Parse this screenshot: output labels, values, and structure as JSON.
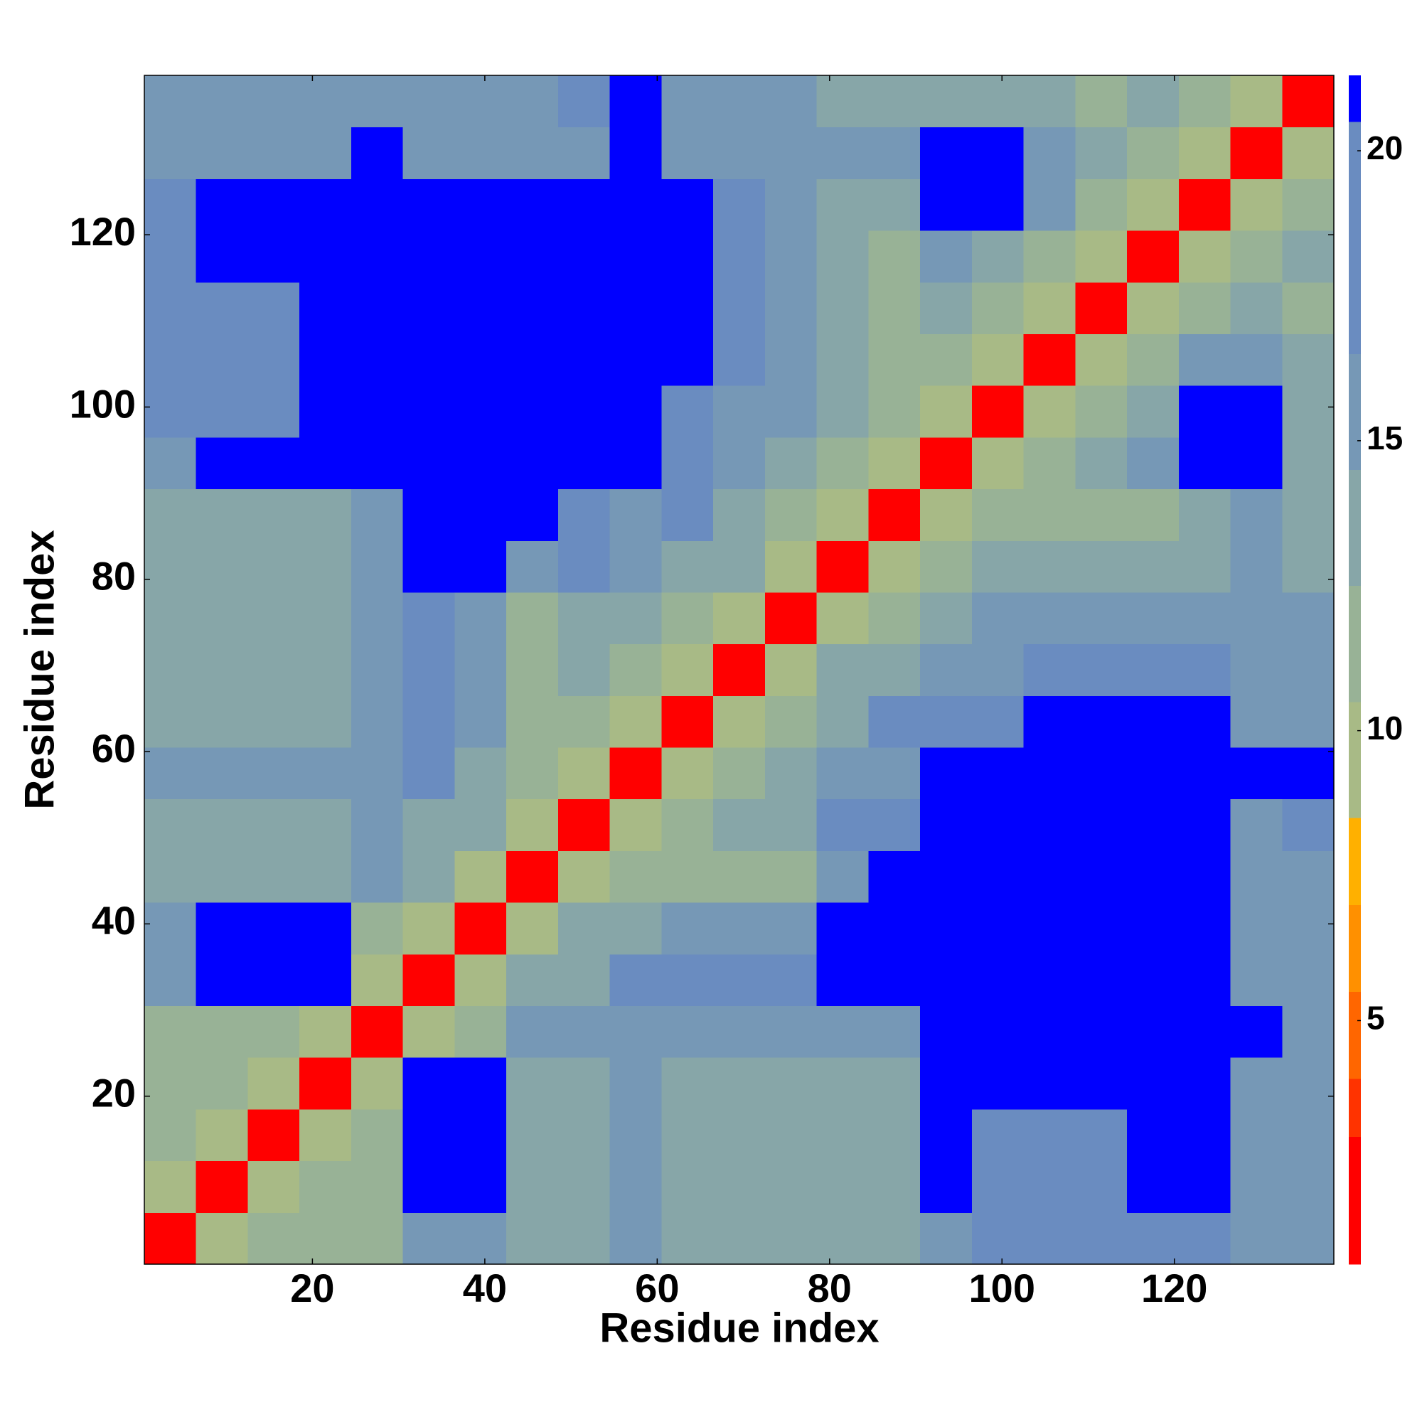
{
  "chart_data": {
    "type": "heatmap",
    "xlabel": "Residue index",
    "ylabel": "Residue index",
    "xlim": [
      0.5,
      138.5
    ],
    "ylim": [
      0.5,
      138.5
    ],
    "xticks": [
      20,
      40,
      60,
      80,
      100,
      120
    ],
    "yticks": [
      20,
      40,
      60,
      80,
      100,
      120
    ],
    "xbins": [
      0.5,
      6.5,
      12.5,
      18.5,
      24.5,
      30.5,
      36.5,
      42.5,
      48.5,
      54.5,
      60.5,
      66.5,
      72.5,
      78.5,
      84.5,
      90.5,
      96.5,
      102.5,
      108.5,
      114.5,
      120.5,
      126.5,
      132.5,
      138.5
    ],
    "ybins": [
      0.5,
      6.5,
      12.5,
      18.5,
      24.5,
      30.5,
      36.5,
      42.5,
      48.5,
      54.5,
      60.5,
      66.5,
      72.5,
      78.5,
      84.5,
      90.5,
      96.5,
      102.5,
      108.5,
      114.5,
      120.5,
      126.5,
      132.5,
      138.5
    ],
    "z": [
      [
        2,
        10,
        12,
        12,
        12,
        15,
        15,
        14,
        14,
        16,
        13,
        13,
        13,
        13,
        13,
        15,
        17,
        17,
        17,
        17,
        17,
        15,
        15
      ],
      [
        10,
        2,
        10,
        12,
        12,
        21,
        21,
        14,
        14,
        16,
        13,
        13,
        13,
        13,
        13,
        21,
        17,
        17,
        17,
        21,
        21,
        15,
        15
      ],
      [
        12,
        10,
        2,
        10,
        12,
        21,
        21,
        14,
        14,
        16,
        13,
        13,
        13,
        13,
        13,
        21,
        17,
        17,
        17,
        21,
        21,
        15,
        15
      ],
      [
        12,
        12,
        10,
        2,
        10,
        21,
        21,
        14,
        14,
        16,
        13,
        13,
        13,
        13,
        13,
        21,
        21,
        21,
        21,
        21,
        21,
        15,
        15
      ],
      [
        12,
        12,
        12,
        10,
        2,
        10,
        12,
        15,
        15,
        15,
        16,
        16,
        16,
        16,
        16,
        21,
        21,
        21,
        21,
        21,
        21,
        21,
        16
      ],
      [
        15,
        21,
        21,
        21,
        10,
        2,
        10,
        13,
        13,
        17,
        17,
        17,
        17,
        21,
        21,
        21,
        21,
        21,
        21,
        21,
        21,
        15,
        16
      ],
      [
        15,
        21,
        21,
        21,
        12,
        10,
        2,
        10,
        13,
        14,
        16,
        16,
        16,
        21,
        21,
        21,
        21,
        21,
        21,
        21,
        21,
        15,
        16
      ],
      [
        14,
        14,
        14,
        14,
        15,
        13,
        10,
        2,
        10,
        12,
        11,
        11,
        11,
        16,
        21,
        21,
        21,
        21,
        21,
        21,
        21,
        15,
        16
      ],
      [
        14,
        14,
        14,
        14,
        15,
        13,
        13,
        10,
        2,
        10,
        11,
        13,
        13,
        17,
        17,
        21,
        21,
        21,
        21,
        21,
        21,
        15,
        17
      ],
      [
        16,
        16,
        16,
        16,
        15,
        17,
        14,
        12,
        10,
        2,
        10,
        12,
        14,
        16,
        16,
        21,
        21,
        21,
        21,
        21,
        21,
        21,
        21
      ],
      [
        13,
        13,
        13,
        13,
        16,
        17,
        16,
        11,
        11,
        10,
        2,
        10,
        12,
        14,
        17,
        17,
        17,
        21,
        21,
        21,
        21,
        15,
        15
      ],
      [
        13,
        13,
        13,
        13,
        16,
        17,
        16,
        11,
        13,
        12,
        10,
        2,
        10,
        13,
        14,
        16,
        16,
        17,
        17,
        17,
        17,
        15,
        15
      ],
      [
        13,
        13,
        13,
        13,
        16,
        17,
        16,
        11,
        13,
        14,
        12,
        10,
        2,
        10,
        12,
        13,
        15,
        15,
        15,
        15,
        16,
        16,
        15
      ],
      [
        13,
        13,
        13,
        13,
        16,
        21,
        21,
        16,
        17,
        16,
        14,
        13,
        10,
        2,
        10,
        12,
        13,
        13,
        13,
        13,
        14,
        15,
        14
      ],
      [
        13,
        13,
        13,
        13,
        16,
        21,
        21,
        21,
        17,
        16,
        17,
        14,
        12,
        10,
        2,
        10,
        11,
        12,
        12,
        12,
        14,
        16,
        14
      ],
      [
        15,
        21,
        21,
        21,
        21,
        21,
        21,
        21,
        21,
        21,
        17,
        16,
        13,
        12,
        10,
        2,
        10,
        12,
        14,
        16,
        21,
        21,
        13
      ],
      [
        17,
        17,
        17,
        21,
        21,
        21,
        21,
        21,
        21,
        21,
        17,
        16,
        15,
        13,
        11,
        10,
        2,
        10,
        12,
        14,
        21,
        21,
        14
      ],
      [
        17,
        17,
        17,
        21,
        21,
        21,
        21,
        21,
        21,
        21,
        21,
        17,
        15,
        13,
        12,
        12,
        10,
        2,
        10,
        12,
        16,
        16,
        13
      ],
      [
        17,
        17,
        17,
        21,
        21,
        21,
        21,
        21,
        21,
        21,
        21,
        17,
        15,
        13,
        12,
        14,
        12,
        10,
        2,
        10,
        12,
        14,
        12
      ],
      [
        17,
        21,
        21,
        21,
        21,
        21,
        21,
        21,
        21,
        21,
        21,
        17,
        15,
        13,
        12,
        16,
        14,
        12,
        10,
        2,
        10,
        11,
        13
      ],
      [
        17,
        21,
        21,
        21,
        21,
        21,
        21,
        21,
        21,
        21,
        21,
        17,
        16,
        14,
        14,
        21,
        21,
        16,
        12,
        10,
        2,
        10,
        11
      ],
      [
        15,
        15,
        15,
        15,
        21,
        15,
        15,
        15,
        15,
        21,
        15,
        15,
        16,
        15,
        16,
        21,
        21,
        16,
        14,
        11,
        10,
        2,
        10
      ],
      [
        15,
        15,
        15,
        15,
        16,
        16,
        16,
        16,
        17,
        21,
        15,
        15,
        15,
        14,
        14,
        13,
        14,
        13,
        12,
        13,
        11,
        10,
        2
      ]
    ],
    "levels": [
      0.8,
      3,
      4,
      5.5,
      7,
      8.5,
      10.5,
      12.5,
      14.5,
      16.5,
      20.5,
      21.3
    ],
    "colors": [
      "#ff0000",
      "#ff3300",
      "#ff6600",
      "#ff9000",
      "#ffb000",
      "#a8ba86",
      "#98b296",
      "#87a6a8",
      "#7698b6",
      "#6a8cc0",
      "#0000ff"
    ],
    "colorbar_ticks": [
      5,
      10,
      15,
      20
    ]
  }
}
